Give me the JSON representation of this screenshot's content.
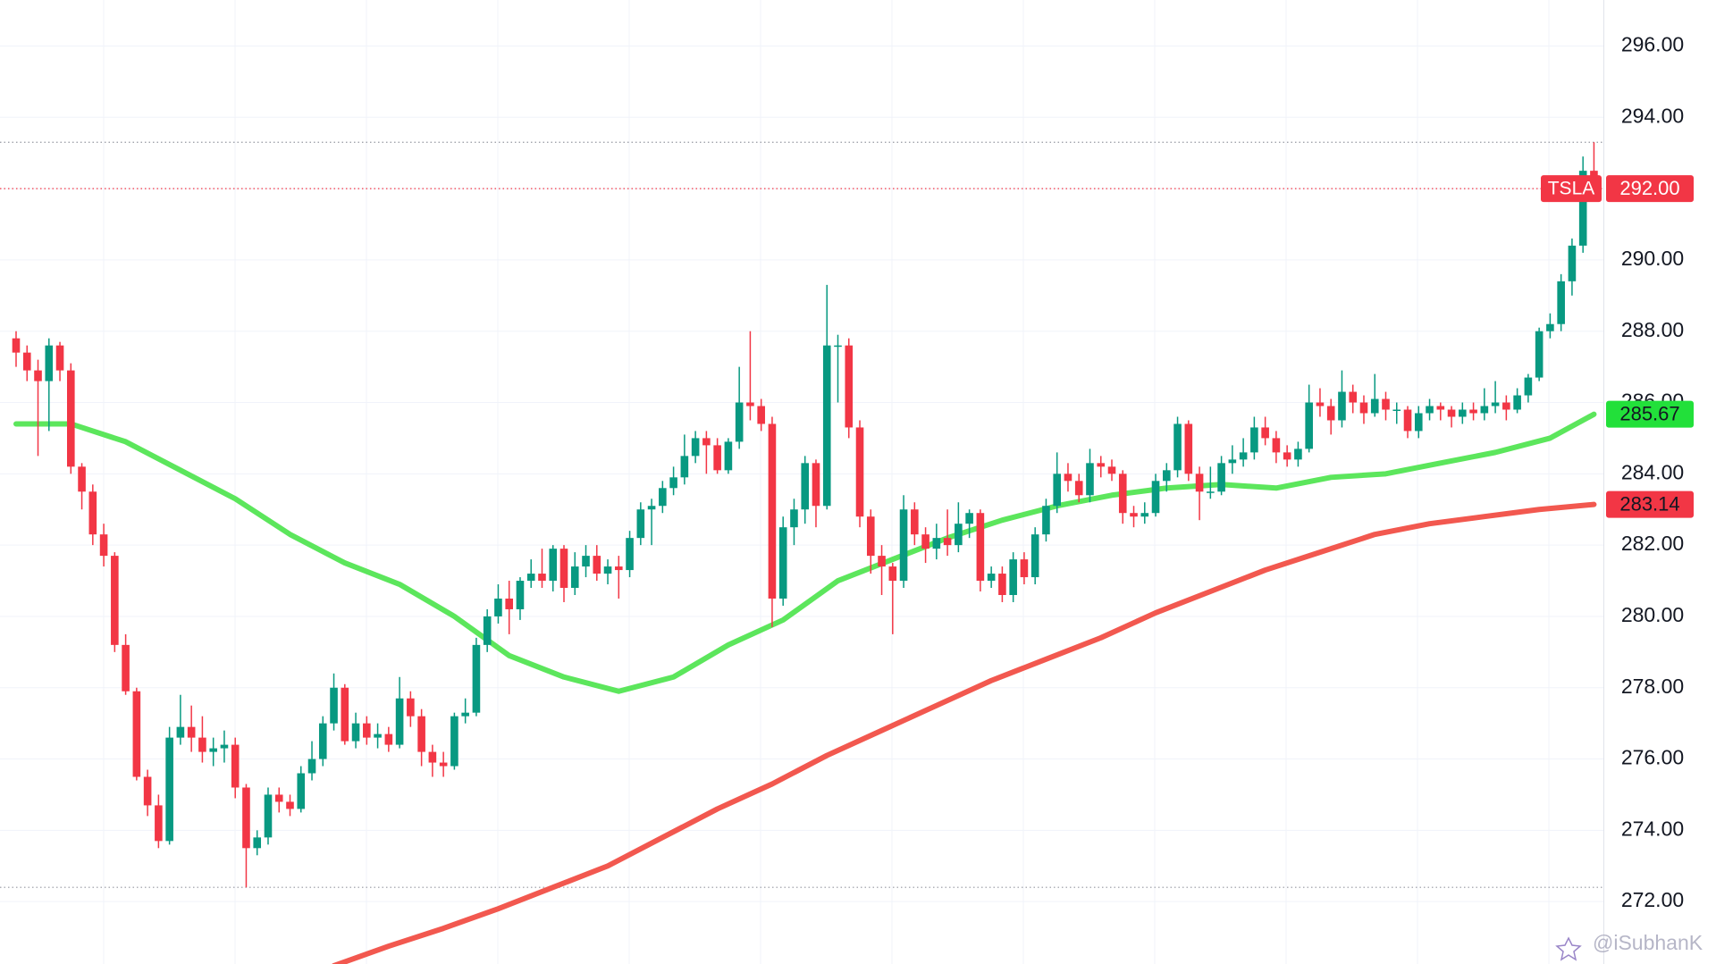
{
  "chart_data": {
    "type": "candlestick",
    "symbol": "TSLA",
    "watermark": "@iSubhanK",
    "ylim": [
      270.25,
      297.29
    ],
    "yticks": [
      {
        "value": 272,
        "label": "272.00"
      },
      {
        "value": 274,
        "label": "274.00"
      },
      {
        "value": 276,
        "label": "276.00"
      },
      {
        "value": 278,
        "label": "278.00"
      },
      {
        "value": 280,
        "label": "280.00"
      },
      {
        "value": 282,
        "label": "282.00"
      },
      {
        "value": 284,
        "label": "284.00"
      },
      {
        "value": 286,
        "label": "286.00"
      },
      {
        "value": 288,
        "label": "288.00"
      },
      {
        "value": 290,
        "label": "290.00"
      },
      {
        "value": 292,
        "label": "292.00"
      },
      {
        "value": 294,
        "label": "294.00"
      },
      {
        "value": 296,
        "label": "296.00"
      }
    ],
    "grid": true,
    "up_color": "#089981",
    "down_color": "#f23645",
    "last_price": {
      "value": 292,
      "label": "292.00",
      "color": "#f23645"
    },
    "high_line": 293.3,
    "low_line": 272.4,
    "ohlc": [
      [
        287.8,
        288.0,
        287.0,
        287.4
      ],
      [
        287.4,
        287.6,
        286.6,
        286.9
      ],
      [
        286.9,
        287.2,
        284.5,
        286.6
      ],
      [
        286.6,
        287.8,
        285.2,
        287.6
      ],
      [
        287.6,
        287.7,
        286.6,
        286.9
      ],
      [
        286.9,
        287.1,
        284.0,
        284.2
      ],
      [
        284.2,
        284.3,
        283.0,
        283.5
      ],
      [
        283.5,
        283.7,
        282.0,
        282.3
      ],
      [
        282.3,
        282.6,
        281.4,
        281.7
      ],
      [
        281.7,
        281.8,
        279.0,
        279.2
      ],
      [
        279.2,
        279.5,
        277.8,
        277.9
      ],
      [
        277.9,
        278.0,
        275.4,
        275.5
      ],
      [
        275.5,
        275.7,
        274.4,
        274.7
      ],
      [
        274.7,
        275.0,
        273.5,
        273.7
      ],
      [
        273.7,
        276.9,
        273.6,
        276.6
      ],
      [
        276.6,
        277.8,
        276.4,
        276.9
      ],
      [
        276.9,
        277.5,
        276.2,
        276.6
      ],
      [
        276.6,
        277.2,
        275.9,
        276.2
      ],
      [
        276.2,
        276.6,
        275.8,
        276.3
      ],
      [
        276.3,
        276.8,
        275.9,
        276.4
      ],
      [
        276.4,
        276.6,
        274.9,
        275.2
      ],
      [
        275.2,
        275.3,
        272.4,
        273.5
      ],
      [
        273.5,
        274.0,
        273.3,
        273.8
      ],
      [
        273.8,
        275.2,
        273.6,
        275.0
      ],
      [
        275.0,
        275.2,
        274.5,
        274.8
      ],
      [
        274.8,
        275.0,
        274.4,
        274.6
      ],
      [
        274.6,
        275.8,
        274.5,
        275.6
      ],
      [
        275.6,
        276.5,
        275.4,
        276.0
      ],
      [
        276.0,
        277.2,
        275.8,
        277.0
      ],
      [
        277.0,
        278.4,
        276.8,
        278.0
      ],
      [
        278.0,
        278.1,
        276.4,
        276.5
      ],
      [
        276.5,
        277.3,
        276.3,
        277.0
      ],
      [
        277.0,
        277.2,
        276.4,
        276.6
      ],
      [
        276.6,
        277.0,
        276.3,
        276.7
      ],
      [
        276.7,
        276.9,
        276.2,
        276.4
      ],
      [
        276.4,
        278.3,
        276.3,
        277.7
      ],
      [
        277.7,
        277.9,
        276.9,
        277.2
      ],
      [
        277.2,
        277.4,
        275.8,
        276.2
      ],
      [
        276.2,
        276.4,
        275.5,
        275.9
      ],
      [
        275.9,
        276.2,
        275.5,
        275.8
      ],
      [
        275.8,
        277.3,
        275.7,
        277.2
      ],
      [
        277.2,
        277.7,
        277.0,
        277.3
      ],
      [
        277.3,
        279.4,
        277.2,
        279.2
      ],
      [
        279.2,
        280.2,
        279.0,
        280.0
      ],
      [
        280.0,
        280.9,
        279.8,
        280.5
      ],
      [
        280.5,
        281.0,
        279.5,
        280.2
      ],
      [
        280.2,
        281.1,
        279.9,
        281.0
      ],
      [
        281.0,
        281.6,
        280.8,
        281.2
      ],
      [
        281.2,
        281.9,
        280.8,
        281.0
      ],
      [
        281.0,
        282.0,
        280.7,
        281.9
      ],
      [
        281.9,
        282.0,
        280.4,
        280.8
      ],
      [
        280.8,
        281.8,
        280.6,
        281.4
      ],
      [
        281.4,
        282.0,
        281.1,
        281.7
      ],
      [
        281.7,
        282.0,
        281.0,
        281.2
      ],
      [
        281.2,
        281.6,
        280.9,
        281.4
      ],
      [
        281.4,
        281.7,
        280.5,
        281.3
      ],
      [
        281.3,
        282.4,
        281.1,
        282.2
      ],
      [
        282.2,
        283.2,
        282.0,
        283.0
      ],
      [
        283.0,
        283.3,
        282.0,
        283.1
      ],
      [
        283.1,
        283.8,
        282.9,
        283.6
      ],
      [
        283.6,
        284.2,
        283.4,
        283.9
      ],
      [
        283.9,
        285.1,
        283.7,
        284.5
      ],
      [
        284.5,
        285.2,
        284.3,
        285.0
      ],
      [
        285.0,
        285.2,
        284.0,
        284.8
      ],
      [
        284.8,
        285.0,
        284.0,
        284.1
      ],
      [
        284.1,
        285.0,
        284.0,
        284.9
      ],
      [
        284.9,
        287.0,
        284.7,
        286.0
      ],
      [
        286.0,
        288.0,
        285.5,
        285.9
      ],
      [
        285.9,
        286.1,
        285.2,
        285.4
      ],
      [
        285.4,
        285.6,
        279.7,
        280.5
      ],
      [
        280.5,
        282.8,
        280.3,
        282.5
      ],
      [
        282.5,
        283.3,
        282.0,
        283.0
      ],
      [
        283.0,
        284.5,
        282.6,
        284.3
      ],
      [
        284.3,
        284.4,
        282.5,
        283.1
      ],
      [
        283.1,
        289.3,
        283.0,
        287.6
      ],
      [
        287.6,
        287.9,
        286.0,
        287.6
      ],
      [
        287.6,
        287.8,
        285.0,
        285.3
      ],
      [
        285.3,
        285.5,
        282.5,
        282.8
      ],
      [
        282.8,
        283.0,
        281.2,
        281.7
      ],
      [
        281.7,
        282.0,
        280.6,
        281.4
      ],
      [
        281.4,
        281.5,
        279.5,
        281.0
      ],
      [
        281.0,
        283.4,
        280.8,
        283.0
      ],
      [
        283.0,
        283.2,
        282.0,
        282.3
      ],
      [
        282.3,
        282.5,
        281.5,
        281.9
      ],
      [
        281.9,
        282.6,
        281.6,
        282.2
      ],
      [
        282.2,
        283.0,
        281.7,
        282.0
      ],
      [
        282.0,
        283.2,
        281.8,
        282.6
      ],
      [
        282.6,
        283.0,
        282.2,
        282.9
      ],
      [
        282.9,
        283.0,
        280.7,
        281.0
      ],
      [
        281.0,
        281.4,
        280.8,
        281.2
      ],
      [
        281.2,
        281.4,
        280.4,
        280.6
      ],
      [
        280.6,
        281.8,
        280.4,
        281.6
      ],
      [
        281.6,
        281.8,
        280.9,
        281.1
      ],
      [
        281.1,
        282.5,
        280.9,
        282.3
      ],
      [
        282.3,
        283.3,
        282.1,
        283.1
      ],
      [
        283.1,
        284.6,
        282.9,
        284.0
      ],
      [
        284.0,
        284.3,
        283.5,
        283.8
      ],
      [
        283.8,
        284.0,
        283.2,
        283.4
      ],
      [
        283.4,
        284.7,
        283.2,
        284.3
      ],
      [
        284.3,
        284.5,
        283.9,
        284.2
      ],
      [
        284.2,
        284.4,
        283.8,
        284.0
      ],
      [
        284.0,
        284.1,
        282.6,
        282.9
      ],
      [
        282.9,
        283.1,
        282.5,
        282.8
      ],
      [
        282.8,
        283.2,
        282.6,
        282.9
      ],
      [
        282.9,
        284.0,
        282.8,
        283.8
      ],
      [
        283.8,
        284.3,
        283.5,
        284.1
      ],
      [
        284.1,
        285.6,
        283.9,
        285.4
      ],
      [
        285.4,
        285.5,
        283.8,
        284.0
      ],
      [
        284.0,
        284.2,
        282.7,
        283.5
      ],
      [
        283.5,
        284.2,
        283.3,
        283.5
      ],
      [
        283.5,
        284.5,
        283.4,
        284.3
      ],
      [
        284.3,
        284.8,
        284.0,
        284.4
      ],
      [
        284.4,
        285.0,
        284.2,
        284.6
      ],
      [
        284.6,
        285.6,
        284.4,
        285.3
      ],
      [
        285.3,
        285.6,
        284.8,
        285.0
      ],
      [
        285.0,
        285.2,
        284.3,
        284.6
      ],
      [
        284.6,
        284.8,
        284.2,
        284.4
      ],
      [
        284.4,
        284.9,
        284.2,
        284.7
      ],
      [
        284.7,
        286.5,
        284.6,
        286.0
      ],
      [
        286.0,
        286.4,
        285.6,
        285.9
      ],
      [
        285.9,
        286.1,
        285.1,
        285.5
      ],
      [
        285.5,
        286.9,
        285.3,
        286.3
      ],
      [
        286.3,
        286.5,
        285.7,
        286.0
      ],
      [
        286.0,
        286.2,
        285.4,
        285.7
      ],
      [
        285.7,
        286.8,
        285.6,
        286.1
      ],
      [
        286.1,
        286.3,
        285.5,
        285.8
      ],
      [
        285.8,
        286.0,
        285.4,
        285.8
      ],
      [
        285.8,
        285.9,
        285.0,
        285.2
      ],
      [
        285.2,
        285.9,
        285.0,
        285.7
      ],
      [
        285.7,
        286.1,
        285.5,
        285.9
      ],
      [
        285.9,
        286.0,
        285.5,
        285.8
      ],
      [
        285.8,
        285.9,
        285.3,
        285.6
      ],
      [
        285.6,
        286.0,
        285.4,
        285.8
      ],
      [
        285.8,
        286.0,
        285.5,
        285.7
      ],
      [
        285.7,
        286.4,
        285.5,
        285.9
      ],
      [
        285.9,
        286.6,
        285.7,
        286.0
      ],
      [
        286.0,
        286.2,
        285.5,
        285.8
      ],
      [
        285.8,
        286.4,
        285.7,
        286.2
      ],
      [
        286.2,
        286.8,
        286.0,
        286.7
      ],
      [
        286.7,
        288.1,
        286.6,
        288.0
      ],
      [
        288.0,
        288.5,
        287.8,
        288.2
      ],
      [
        288.2,
        289.6,
        288.0,
        289.4
      ],
      [
        289.4,
        290.6,
        289.0,
        290.4
      ],
      [
        290.4,
        292.9,
        290.2,
        292.5
      ],
      [
        292.5,
        293.3,
        291.7,
        292.0
      ]
    ],
    "series": [
      {
        "color": "#5ce65c",
        "label_color": "#22e03a",
        "last_value": 285.67,
        "x": [
          0,
          5,
          10,
          15,
          20,
          25,
          30,
          35,
          40,
          45,
          50,
          55,
          60,
          65,
          70,
          75,
          80,
          85,
          90,
          95,
          100,
          105,
          110,
          115,
          120,
          125,
          130,
          135,
          140,
          144
        ],
        "values": [
          285.4,
          285.4,
          284.9,
          284.1,
          283.3,
          282.3,
          281.5,
          280.9,
          280.0,
          278.9,
          278.3,
          277.9,
          278.3,
          279.2,
          279.9,
          281.0,
          281.6,
          282.2,
          282.7,
          283.1,
          283.4,
          283.6,
          283.7,
          283.6,
          283.9,
          284.0,
          284.3,
          284.6,
          285.0,
          285.67
        ]
      },
      {
        "color": "#f2584f",
        "label_color": "#f23645",
        "last_value": 283.14,
        "x": [
          29,
          34,
          39,
          44,
          49,
          54,
          59,
          64,
          69,
          74,
          79,
          84,
          89,
          94,
          99,
          104,
          109,
          114,
          119,
          124,
          129,
          134,
          139,
          144
        ],
        "values": [
          270.2,
          270.75,
          271.25,
          271.8,
          272.4,
          273.0,
          273.8,
          274.6,
          275.3,
          276.1,
          276.8,
          277.5,
          278.2,
          278.8,
          279.4,
          280.1,
          280.7,
          281.3,
          281.8,
          282.3,
          282.6,
          282.8,
          283.0,
          283.14
        ]
      }
    ]
  }
}
